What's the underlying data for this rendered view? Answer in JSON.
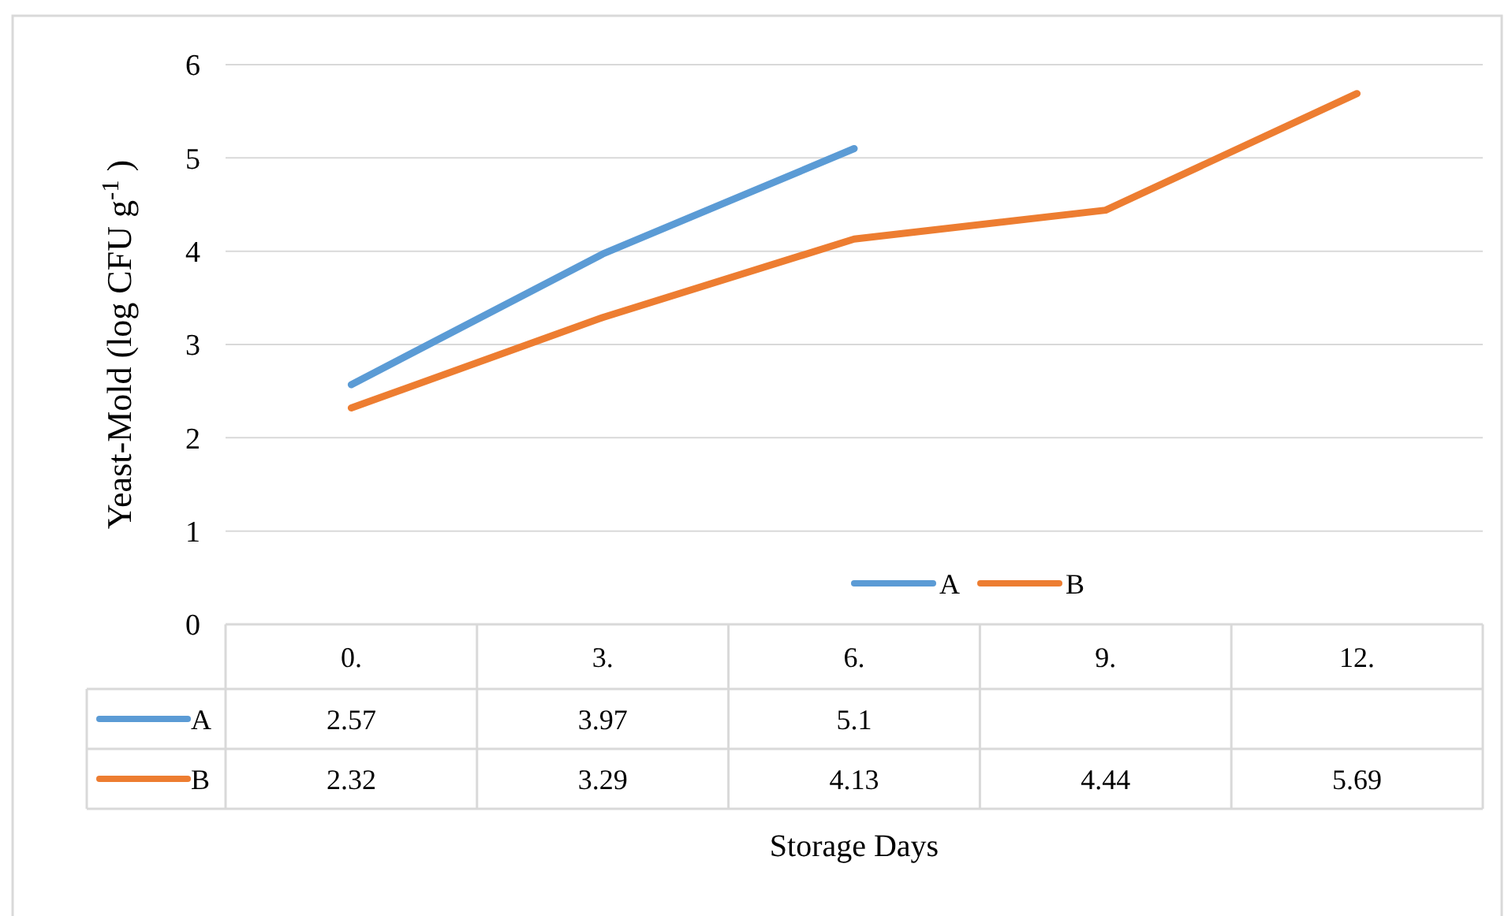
{
  "chart_data": {
    "type": "line",
    "xlabel": "Storage Days",
    "ylabel": "Yeast-Mold (log CFU g$^{-1}$ )",
    "categories": [
      "0.",
      "3.",
      "6.",
      "9.",
      "12."
    ],
    "series": [
      {
        "name": "A",
        "color": "#5b9bd5",
        "values": [
          2.57,
          3.97,
          5.1,
          null,
          null
        ]
      },
      {
        "name": "B",
        "color": "#ed7d31",
        "values": [
          2.32,
          3.29,
          4.13,
          4.44,
          5.69
        ]
      }
    ],
    "ylim": [
      0,
      6
    ],
    "yticks": [
      0,
      1,
      2,
      3,
      4,
      5,
      6
    ],
    "grid": "y",
    "legend": "bottom",
    "data_labels": true,
    "line_style": "solid"
  }
}
